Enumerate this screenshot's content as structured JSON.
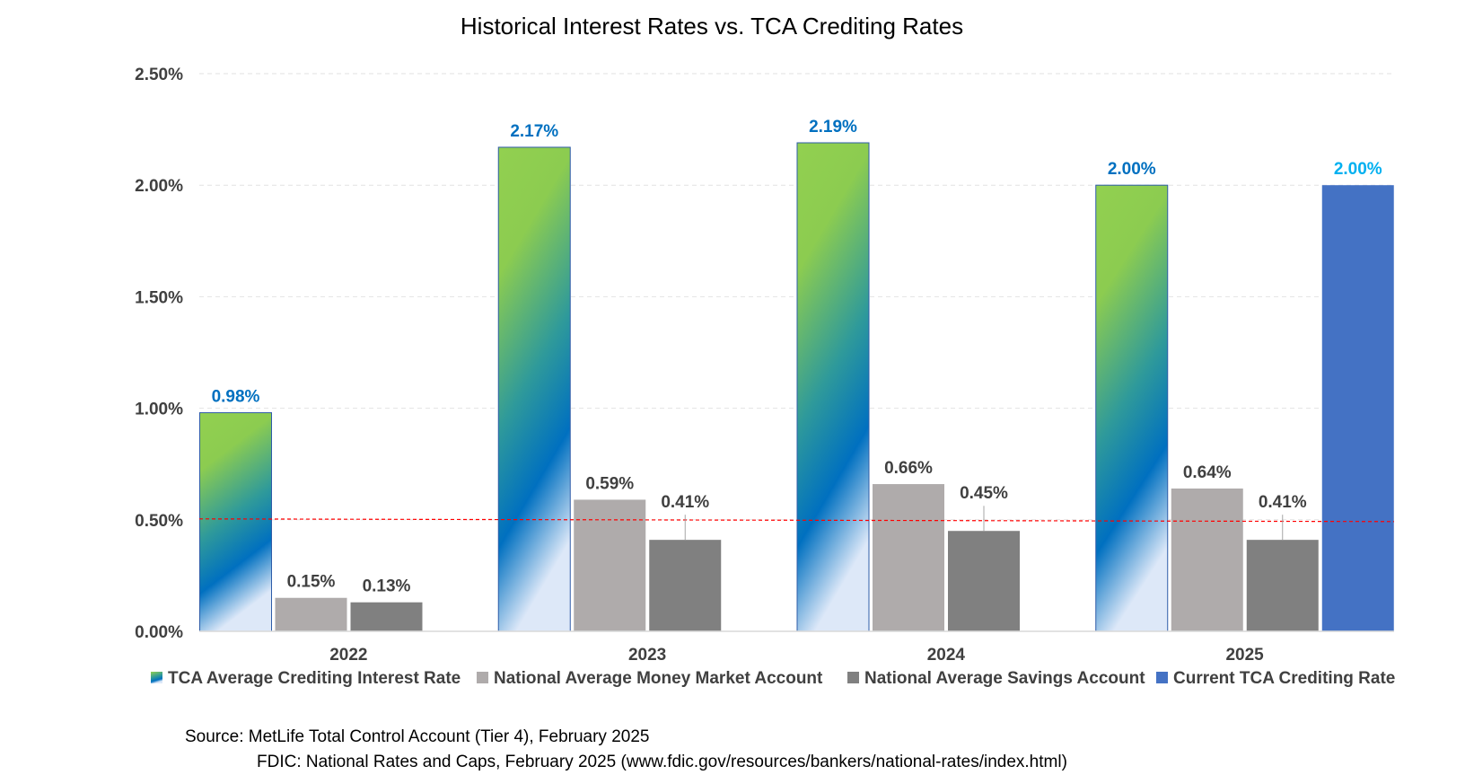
{
  "chart_data": {
    "type": "bar",
    "title": "Historical Interest Rates vs. TCA Crediting Rates",
    "categories": [
      "2022",
      "2023",
      "2024",
      "2025"
    ],
    "series": [
      {
        "name": "TCA Average Crediting Interest Rate",
        "values": [
          0.98,
          2.17,
          2.19,
          2.0
        ],
        "labels": [
          "0.98%",
          "2.17%",
          "2.19%",
          "2.00%"
        ],
        "fill": "gradient-green-blue",
        "label_color": "#0070c0"
      },
      {
        "name": "National Average Money Market Account",
        "values": [
          0.15,
          0.59,
          0.66,
          0.64
        ],
        "labels": [
          "0.15%",
          "0.59%",
          "0.66%",
          "0.64%"
        ],
        "color": "#afabab",
        "label_color": "#404040"
      },
      {
        "name": "National Average Savings Account",
        "values": [
          0.13,
          0.41,
          0.45,
          0.41
        ],
        "labels": [
          "0.13%",
          "0.41%",
          "0.45%",
          "0.41%"
        ],
        "color": "#808080",
        "label_color": "#404040"
      },
      {
        "name": "Current TCA Crediting Rate",
        "values": [
          null,
          null,
          null,
          2.0
        ],
        "labels": [
          null,
          null,
          null,
          "2.00%"
        ],
        "color": "#4472c4",
        "label_color": "#00b0f0"
      }
    ],
    "yticks": [
      "0.00%",
      "0.50%",
      "1.00%",
      "1.50%",
      "2.00%",
      "2.50%"
    ],
    "ylim": [
      0,
      2.5
    ],
    "reference_line": {
      "value": 0.5,
      "color": "#ff0000",
      "style": "dashed"
    },
    "grid": true,
    "legend_position": "bottom"
  },
  "source": {
    "line1": "Source:  MetLife Total Control Account (Tier 4), February  2025",
    "line2": "FDIC: National Rates and Caps, February 2025 (www.fdic.gov/resources/bankers/national-rates/index.html)"
  }
}
